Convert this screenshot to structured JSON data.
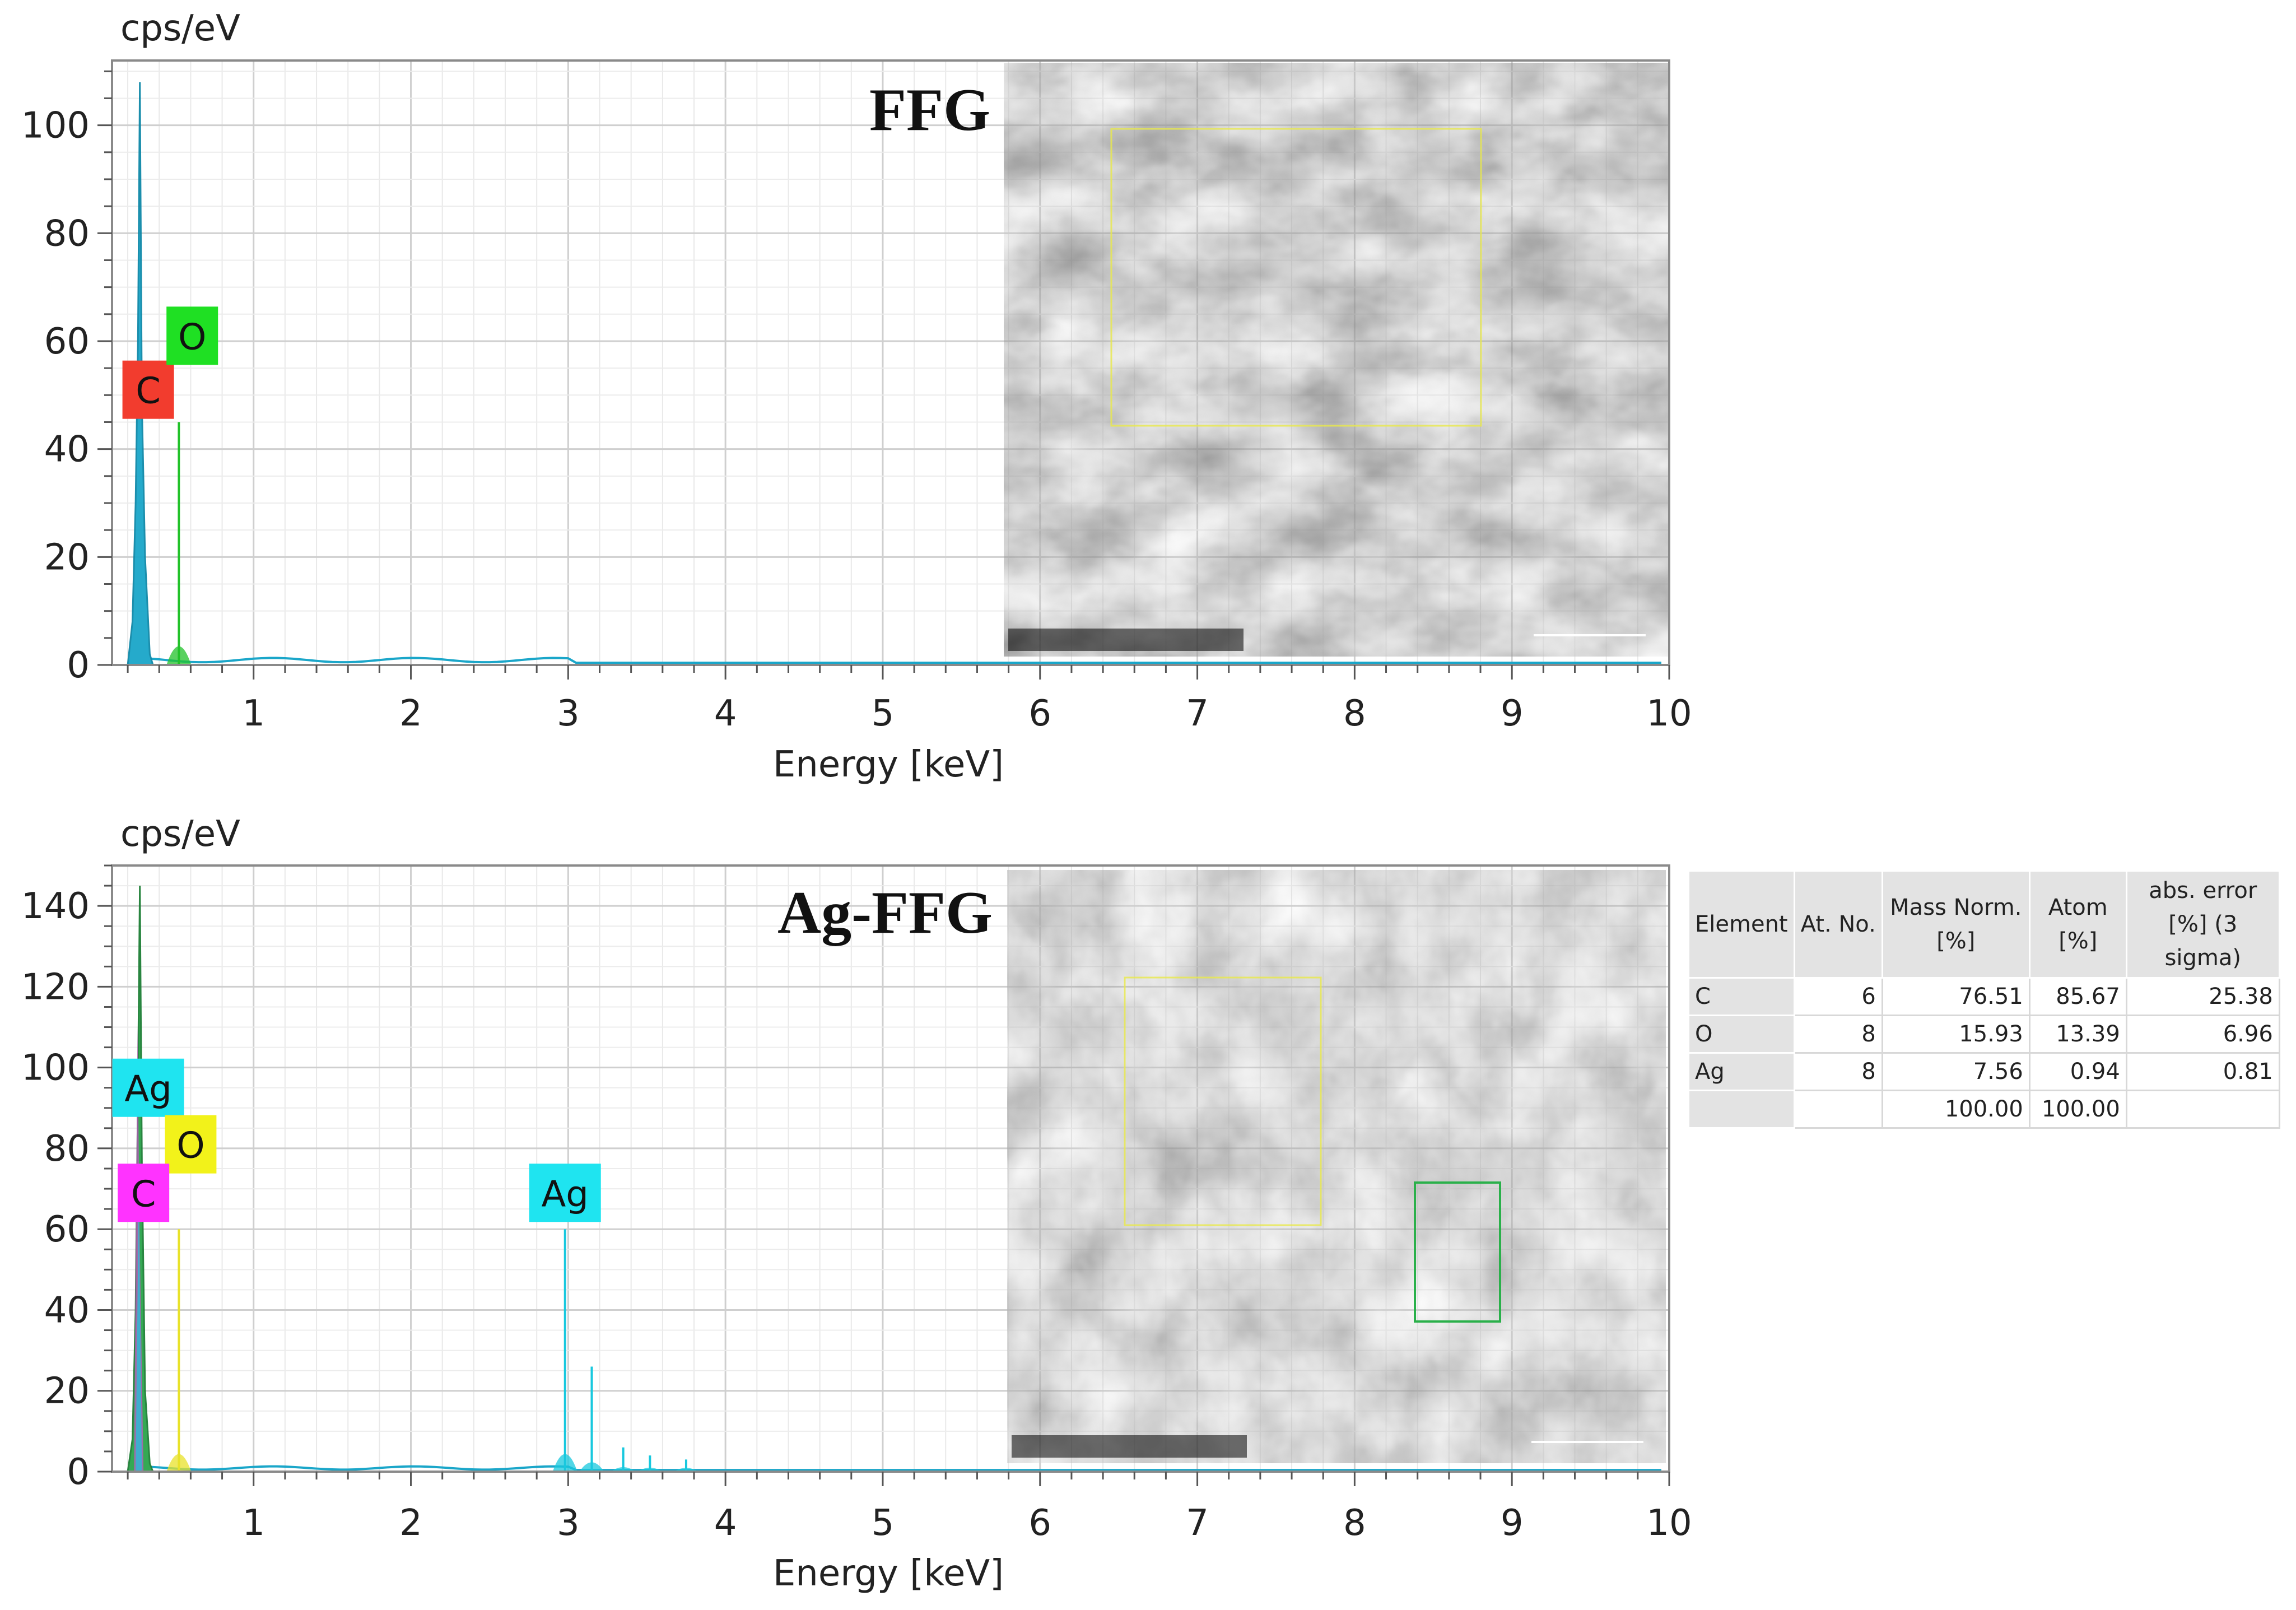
{
  "chart_data": [
    {
      "type": "bar",
      "title": "FFG",
      "ylabel": "cps/eV",
      "xlabel": "Energy [keV]",
      "xlim": [
        0.1,
        10
      ],
      "ylim": [
        0,
        112
      ],
      "x_ticks": [
        "1",
        "2",
        "3",
        "4",
        "5",
        "6",
        "7",
        "8",
        "9",
        "10"
      ],
      "y_ticks": [
        "0",
        "20",
        "40",
        "60",
        "80",
        "100"
      ],
      "grid": true,
      "series": [
        {
          "name": "C",
          "color": "#1aa6c9",
          "x": [
            0.26,
            0.277,
            0.29
          ],
          "y": [
            30,
            108,
            60
          ]
        },
        {
          "name": "O",
          "color": "#22c22a",
          "x": [
            0.525
          ],
          "y": [
            45
          ]
        }
      ],
      "peak_labels": [
        {
          "text": "C",
          "color": "#f23c2e",
          "x": 0.33,
          "y": 51
        },
        {
          "text": "O",
          "color": "#1fe023",
          "x": 0.61,
          "y": 61
        }
      ],
      "inset": "SEM image"
    },
    {
      "type": "bar",
      "title": "Ag-FFG",
      "ylabel": "cps/eV",
      "xlabel": "Energy [keV]",
      "xlim": [
        0.1,
        10
      ],
      "ylim": [
        0,
        150
      ],
      "x_ticks": [
        "1",
        "2",
        "3",
        "4",
        "5",
        "6",
        "7",
        "8",
        "9",
        "10"
      ],
      "y_ticks": [
        "0",
        "20",
        "40",
        "60",
        "80",
        "100",
        "120",
        "140"
      ],
      "grid": true,
      "series": [
        {
          "name": "C",
          "color": "#2aa54a",
          "x": [
            0.26,
            0.277,
            0.29
          ],
          "y": [
            40,
            145,
            95
          ]
        },
        {
          "name": "O",
          "color": "#e8e22a",
          "x": [
            0.525
          ],
          "y": [
            60
          ]
        },
        {
          "name": "Ag",
          "color": "#18c8de",
          "x": [
            2.98,
            3.15,
            3.35,
            3.52,
            3.75
          ],
          "y": [
            60,
            26,
            6,
            4,
            3
          ]
        }
      ],
      "peak_labels": [
        {
          "text": "Ag",
          "color": "#1fe4f0",
          "x": 0.33,
          "y": 95
        },
        {
          "text": "O",
          "color": "#f2f21a",
          "x": 0.6,
          "y": 81
        },
        {
          "text": "C",
          "color": "#ff33ff",
          "x": 0.3,
          "y": 69
        },
        {
          "text": "Ag",
          "color": "#1fe4f0",
          "x": 2.98,
          "y": 69
        }
      ],
      "inset": "SEM image",
      "table": {
        "header": [
          "Element",
          "At. No.",
          "Mass Norm. [%]",
          "Atom [%]",
          "abs. error [%] (3 sigma)"
        ],
        "rows": [
          [
            "C",
            "6",
            "76.51",
            "85.67",
            "25.38"
          ],
          [
            "O",
            "8",
            "15.93",
            "13.39",
            "6.96"
          ],
          [
            "Ag",
            "8",
            "7.56",
            "0.94",
            "0.81"
          ],
          [
            "",
            "",
            "100.00",
            "100.00",
            ""
          ]
        ]
      }
    }
  ]
}
